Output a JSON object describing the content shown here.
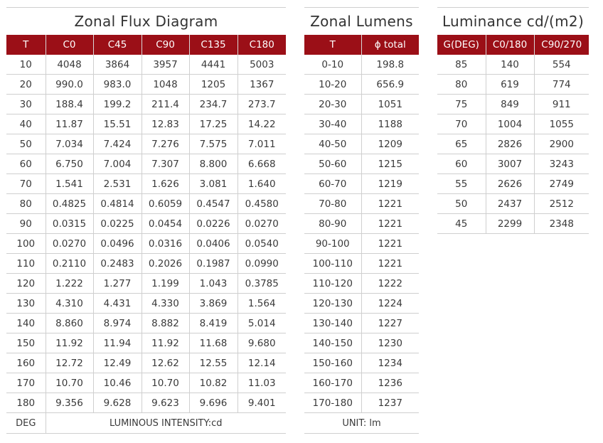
{
  "zonal_flux": {
    "title": "Zonal Flux Diagram",
    "headers": [
      "T",
      "C0",
      "C45",
      "C90",
      "C135",
      "C180"
    ],
    "rows": [
      [
        "10",
        "4048",
        "3864",
        "3957",
        "4441",
        "5003"
      ],
      [
        "20",
        "990.0",
        "983.0",
        "1048",
        "1205",
        "1367"
      ],
      [
        "30",
        "188.4",
        "199.2",
        "211.4",
        "234.7",
        "273.7"
      ],
      [
        "40",
        "11.87",
        "15.51",
        "12.83",
        "17.25",
        "14.22"
      ],
      [
        "50",
        "7.034",
        "7.424",
        "7.276",
        "7.575",
        "7.011"
      ],
      [
        "60",
        "6.750",
        "7.004",
        "7.307",
        "8.800",
        "6.668"
      ],
      [
        "70",
        "1.541",
        "2.531",
        "1.626",
        "3.081",
        "1.640"
      ],
      [
        "80",
        "0.4825",
        "0.4814",
        "0.6059",
        "0.4547",
        "0.4580"
      ],
      [
        "90",
        "0.0315",
        "0.0225",
        "0.0454",
        "0.0226",
        "0.0270"
      ],
      [
        "100",
        "0.0270",
        "0.0496",
        "0.0316",
        "0.0406",
        "0.0540"
      ],
      [
        "110",
        "0.2110",
        "0.2483",
        "0.2026",
        "0.1987",
        "0.0990"
      ],
      [
        "120",
        "1.222",
        "1.277",
        "1.199",
        "1.043",
        "0.3785"
      ],
      [
        "130",
        "4.310",
        "4.431",
        "4.330",
        "3.869",
        "1.564"
      ],
      [
        "140",
        "8.860",
        "8.974",
        "8.882",
        "8.419",
        "5.014"
      ],
      [
        "150",
        "11.92",
        "11.94",
        "11.92",
        "11.68",
        "9.680"
      ],
      [
        "160",
        "12.72",
        "12.49",
        "12.62",
        "12.55",
        "12.14"
      ],
      [
        "170",
        "10.70",
        "10.46",
        "10.70",
        "10.82",
        "11.03"
      ],
      [
        "180",
        "9.356",
        "9.628",
        "9.623",
        "9.696",
        "9.401"
      ]
    ],
    "footer_label": "DEG",
    "footer_unit": "LUMINOUS INTENSITY:cd"
  },
  "zonal_lumens": {
    "title": "Zonal Lumens",
    "headers": [
      "T",
      "ϕ total"
    ],
    "rows": [
      [
        "0-10",
        "198.8"
      ],
      [
        "10-20",
        "656.9"
      ],
      [
        "20-30",
        "1051"
      ],
      [
        "30-40",
        "1188"
      ],
      [
        "40-50",
        "1209"
      ],
      [
        "50-60",
        "1215"
      ],
      [
        "60-70",
        "1219"
      ],
      [
        "70-80",
        "1221"
      ],
      [
        "80-90",
        "1221"
      ],
      [
        "90-100",
        "1221"
      ],
      [
        "100-110",
        "1221"
      ],
      [
        "110-120",
        "1222"
      ],
      [
        "120-130",
        "1224"
      ],
      [
        "130-140",
        "1227"
      ],
      [
        "140-150",
        "1230"
      ],
      [
        "150-160",
        "1234"
      ],
      [
        "160-170",
        "1236"
      ],
      [
        "170-180",
        "1237"
      ]
    ],
    "footer_unit": "UNIT: lm"
  },
  "luminance": {
    "title": "Luminance cd/(m2)",
    "headers": [
      "G(DEG)",
      "C0/180",
      "C90/270"
    ],
    "rows": [
      [
        "85",
        "140",
        "554"
      ],
      [
        "80",
        "619",
        "774"
      ],
      [
        "75",
        "849",
        "911"
      ],
      [
        "70",
        "1004",
        "1055"
      ],
      [
        "65",
        "2826",
        "2900"
      ],
      [
        "60",
        "3007",
        "3243"
      ],
      [
        "55",
        "2626",
        "2749"
      ],
      [
        "50",
        "2437",
        "2512"
      ],
      [
        "45",
        "2299",
        "2348"
      ]
    ]
  },
  "colors": {
    "header_bg": "#9b0f17",
    "header_text": "#ffffff",
    "rule": "#cfcfcf"
  }
}
